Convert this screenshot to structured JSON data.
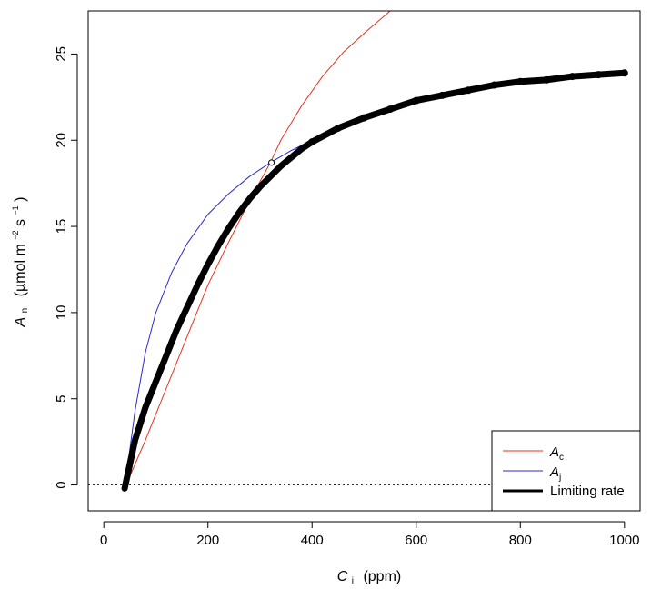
{
  "chart_data": {
    "type": "line",
    "xlabel": {
      "symbol": "C",
      "subscript": "i",
      "unit": "(ppm)"
    },
    "ylabel": {
      "symbol": "A",
      "subscript": "n",
      "unit_parts": [
        "(µmol m",
        "−2",
        " s",
        "−1",
        ")"
      ]
    },
    "xlim": [
      -30,
      1030
    ],
    "ylim": [
      -1.5,
      27.5
    ],
    "xticks": [
      0,
      200,
      400,
      600,
      800,
      1000
    ],
    "yticks": [
      0,
      5,
      10,
      15,
      20,
      25
    ],
    "hline": {
      "y": 0,
      "style": "dotted"
    },
    "series": [
      {
        "name": "A_c",
        "label_symbol": "A",
        "label_subscript": "c",
        "color": "#e8321e",
        "x": [
          40,
          80,
          120,
          160,
          200,
          240,
          280,
          300,
          320,
          340,
          380,
          420,
          460,
          500,
          550
        ],
        "y": [
          -0.2,
          2.6,
          5.6,
          8.6,
          11.6,
          14.1,
          16.5,
          17.6,
          18.7,
          20.0,
          22.0,
          23.7,
          25.1,
          26.2,
          27.5
        ]
      },
      {
        "name": "A_j",
        "label_symbol": "A",
        "label_subscript": "j",
        "color": "#2a2ad0",
        "x": [
          40,
          60,
          80,
          100,
          130,
          160,
          200,
          240,
          280,
          320,
          360,
          400
        ],
        "y": [
          -0.2,
          4.3,
          7.7,
          10.0,
          12.3,
          14.0,
          15.7,
          16.9,
          17.9,
          18.7,
          19.4,
          20.0
        ]
      },
      {
        "name": "Limiting rate",
        "label_symbol": "",
        "label_subscript": "",
        "label_text": "Limiting rate",
        "color": "#000000",
        "x": [
          40,
          60,
          80,
          100,
          120,
          140,
          160,
          180,
          200,
          220,
          240,
          260,
          280,
          300,
          320,
          340,
          360,
          380,
          400,
          450,
          500,
          550,
          600,
          650,
          700,
          750,
          800,
          850,
          900,
          950,
          1000
        ],
        "y": [
          -0.2,
          2.6,
          4.5,
          6.0,
          7.5,
          9.0,
          10.3,
          11.6,
          12.8,
          13.9,
          14.9,
          15.8,
          16.6,
          17.3,
          17.9,
          18.5,
          19.0,
          19.5,
          19.9,
          20.7,
          21.3,
          21.8,
          22.3,
          22.6,
          22.9,
          23.2,
          23.4,
          23.5,
          23.7,
          23.8,
          23.9
        ]
      }
    ],
    "transition_point": {
      "x": 322,
      "y": 18.7
    },
    "legend": {
      "placement": "bottom-right",
      "entries": [
        {
          "symbol": "A",
          "subscript": "c",
          "text": "",
          "color": "#e8321e"
        },
        {
          "symbol": "A",
          "subscript": "j",
          "text": "",
          "color": "#2a2ad0"
        },
        {
          "symbol": "",
          "subscript": "",
          "text": "Limiting rate",
          "color": "#000000"
        }
      ]
    }
  }
}
